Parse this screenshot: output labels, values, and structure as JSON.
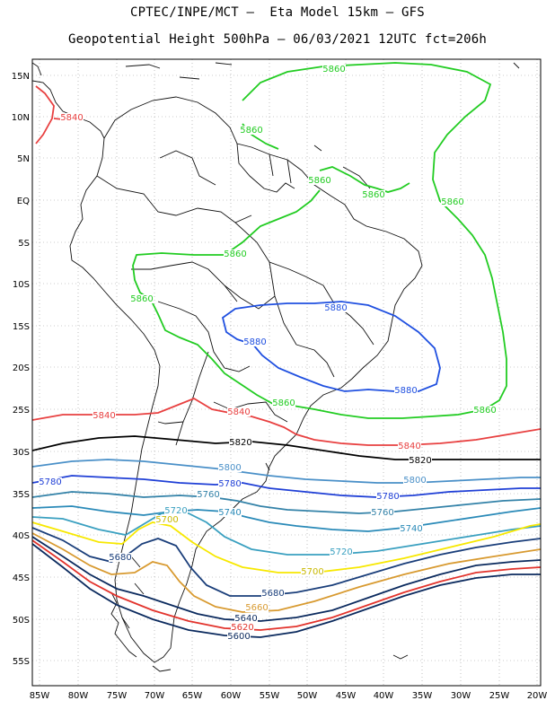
{
  "title_line1": "CPTEC/INPE/MCT –  Eta Model 15km – GFS",
  "title_line2": "Geopotential Height 500hPa – 06/03/2021 12UTC fct=206h",
  "lat_ticks": [
    "15N",
    "10N",
    "5N",
    "EQ",
    "5S",
    "10S",
    "15S",
    "20S",
    "25S",
    "30S",
    "35S",
    "40S",
    "45S",
    "50S",
    "55S"
  ],
  "lon_ticks": [
    "85W",
    "80W",
    "75W",
    "70W",
    "65W",
    "60W",
    "55W",
    "50W",
    "45W",
    "40W",
    "35W",
    "30W",
    "25W",
    "20W"
  ],
  "contour_colors": {
    "5580": "#0b2a5e",
    "5640": "#0b2a5e",
    "5660": "#e2332c",
    "5680": "#1a3e7a",
    "5700": "#f7e800",
    "5720": "#3aa0c0",
    "5740": "#2a8ab8",
    "5760": "#3382a8",
    "5780": "#1f3fd6",
    "5800": "#4a90c8",
    "5820": "#000000",
    "5840": "#e84040",
    "5860": "#d89a30",
    "5880": "#2050e0",
    "5860g": "#22cc22"
  },
  "contour_labels": [
    {
      "text": "5860",
      "color": "#22cc22"
    },
    {
      "text": "5860",
      "color": "#22cc22"
    },
    {
      "text": "5860",
      "color": "#22cc22"
    },
    {
      "text": "5860",
      "color": "#22cc22"
    },
    {
      "text": "5860",
      "color": "#22cc22"
    },
    {
      "text": "5860",
      "color": "#22cc22"
    },
    {
      "text": "5860",
      "color": "#22cc22"
    },
    {
      "text": "5860",
      "color": "#22cc22"
    },
    {
      "text": "5860",
      "color": "#22cc22"
    },
    {
      "text": "5840",
      "color": "#e84040"
    },
    {
      "text": "5840",
      "color": "#e84040"
    },
    {
      "text": "5840",
      "color": "#e84040"
    },
    {
      "text": "5840",
      "color": "#e84040"
    },
    {
      "text": "5880",
      "color": "#2050e0"
    },
    {
      "text": "5880",
      "color": "#2050e0"
    },
    {
      "text": "5880",
      "color": "#2050e0"
    },
    {
      "text": "5820",
      "color": "#000000"
    },
    {
      "text": "5820",
      "color": "#000000"
    },
    {
      "text": "5800",
      "color": "#4a90c8"
    },
    {
      "text": "5800",
      "color": "#4a90c8"
    },
    {
      "text": "5780",
      "color": "#1f3fd6"
    },
    {
      "text": "5780",
      "color": "#1f3fd6"
    },
    {
      "text": "5780",
      "color": "#1f3fd6"
    },
    {
      "text": "5760",
      "color": "#3382a8"
    },
    {
      "text": "5760",
      "color": "#3382a8"
    },
    {
      "text": "5740",
      "color": "#2a8ab8"
    },
    {
      "text": "5740",
      "color": "#2a8ab8"
    },
    {
      "text": "5720",
      "color": "#3aa0c0"
    },
    {
      "text": "5720",
      "color": "#3aa0c0"
    },
    {
      "text": "5700",
      "color": "#c8b800"
    },
    {
      "text": "5700",
      "color": "#c8b800"
    },
    {
      "text": "5680",
      "color": "#1a3e7a"
    },
    {
      "text": "5680",
      "color": "#1a3e7a"
    },
    {
      "text": "5660",
      "color": "#d89a30"
    },
    {
      "text": "5640",
      "color": "#0b2a5e"
    },
    {
      "text": "5620",
      "color": "#e2332c"
    },
    {
      "text": "5600",
      "color": "#0b2a5e"
    }
  ]
}
